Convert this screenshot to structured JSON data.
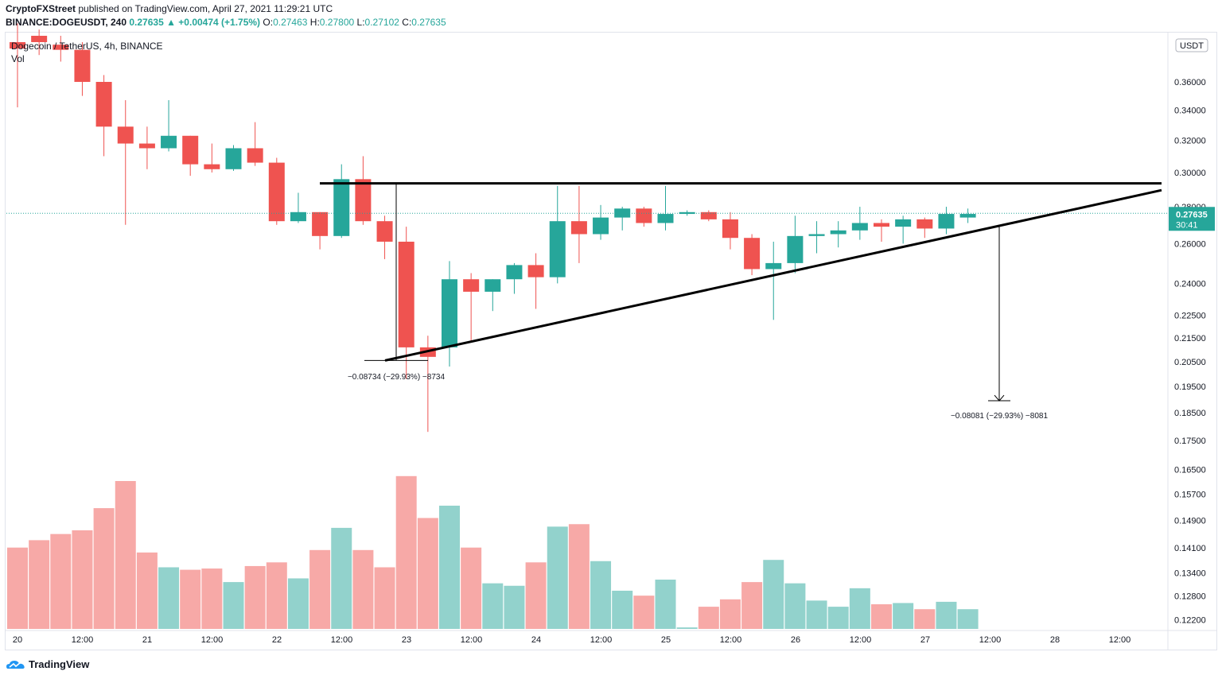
{
  "header": {
    "publisher": "CryptoFXStreet",
    "published_text": "published on TradingView.com, April 27, 2021 11:29:21 UTC",
    "symbol": "BINANCE:DOGEUSDT, 240",
    "change": "0.27635 ▲ +0.00474 (+1.75%)",
    "o_label": "O:",
    "o_value": "0.27463",
    "h_label": "H:",
    "h_value": "0.27800",
    "l_label": "L:",
    "l_value": "0.27102",
    "c_label": "C:",
    "c_value": "0.27635"
  },
  "legend": {
    "title": "Dogecoin / TetherUS, 4h, BINANCE",
    "vol": "Vol"
  },
  "price_axis": {
    "currency": "USDT",
    "current_price": "0.27635",
    "countdown": "30:41"
  },
  "annotations": {
    "measure_left": "−0.08734 (−29.93%) −8734",
    "measure_right": "−0.08081 (−29.93%) −8081"
  },
  "footer": {
    "brand": "TradingView"
  },
  "colors": {
    "up": "#26a69a",
    "down": "#ef5350",
    "vol_up": "#92d2cc",
    "vol_down": "#f7a9a7",
    "price_line": "#26a69a"
  },
  "chart_data": {
    "type": "candlestick",
    "title": "Dogecoin / TetherUS, 4h, BINANCE",
    "y_scale": "log",
    "ylim": [
      0.1205,
      0.3875
    ],
    "y_ticks": [
      "0.36000",
      "0.34000",
      "0.32000",
      "0.30000",
      "0.28000",
      "0.26000",
      "0.24000",
      "0.22500",
      "0.21500",
      "0.20500",
      "0.19500",
      "0.18500",
      "0.17500",
      "0.16500",
      "0.15700",
      "0.14900",
      "0.14100",
      "0.13400",
      "0.12800",
      "0.12200"
    ],
    "x_ticks": [
      "20",
      "12:00",
      "21",
      "12:00",
      "22",
      "12:00",
      "23",
      "12:00",
      "24",
      "12:00",
      "25",
      "12:00",
      "26",
      "12:00",
      "27",
      "12:00",
      "28",
      "12:00"
    ],
    "candles": [
      {
        "o": 0.39,
        "h": 0.405,
        "l": 0.342,
        "c": 0.385,
        "v": 33
      },
      {
        "o": 0.395,
        "h": 0.4,
        "l": 0.38,
        "c": 0.39,
        "v": 36
      },
      {
        "o": 0.388,
        "h": 0.395,
        "l": 0.375,
        "c": 0.384,
        "v": 38.5
      },
      {
        "o": 0.384,
        "h": 0.39,
        "l": 0.35,
        "c": 0.36,
        "v": 40
      },
      {
        "o": 0.36,
        "h": 0.365,
        "l": 0.31,
        "c": 0.329,
        "v": 49
      },
      {
        "o": 0.329,
        "h": 0.347,
        "l": 0.27,
        "c": 0.318,
        "v": 60
      },
      {
        "o": 0.318,
        "h": 0.329,
        "l": 0.302,
        "c": 0.315,
        "v": 31
      },
      {
        "o": 0.315,
        "h": 0.347,
        "l": 0.313,
        "c": 0.323,
        "v": 25
      },
      {
        "o": 0.323,
        "h": 0.323,
        "l": 0.298,
        "c": 0.305,
        "v": 24
      },
      {
        "o": 0.305,
        "h": 0.318,
        "l": 0.3,
        "c": 0.302,
        "v": 24.5
      },
      {
        "o": 0.302,
        "h": 0.317,
        "l": 0.301,
        "c": 0.315,
        "v": 19
      },
      {
        "o": 0.315,
        "h": 0.332,
        "l": 0.304,
        "c": 0.306,
        "v": 25.5
      },
      {
        "o": 0.306,
        "h": 0.309,
        "l": 0.27,
        "c": 0.272,
        "v": 27
      },
      {
        "o": 0.272,
        "h": 0.288,
        "l": 0.271,
        "c": 0.277,
        "v": 20.5
      },
      {
        "o": 0.277,
        "h": 0.277,
        "l": 0.257,
        "c": 0.264,
        "v": 32
      },
      {
        "o": 0.264,
        "h": 0.305,
        "l": 0.263,
        "c": 0.296,
        "v": 41
      },
      {
        "o": 0.296,
        "h": 0.31,
        "l": 0.27,
        "c": 0.272,
        "v": 32
      },
      {
        "o": 0.272,
        "h": 0.275,
        "l": 0.252,
        "c": 0.261,
        "v": 25
      },
      {
        "o": 0.261,
        "h": 0.269,
        "l": 0.198,
        "c": 0.211,
        "v": 62
      },
      {
        "o": 0.211,
        "h": 0.216,
        "l": 0.178,
        "c": 0.207,
        "v": 45
      },
      {
        "o": 0.211,
        "h": 0.251,
        "l": 0.203,
        "c": 0.242,
        "v": 50
      },
      {
        "o": 0.242,
        "h": 0.245,
        "l": 0.213,
        "c": 0.236,
        "v": 33
      },
      {
        "o": 0.236,
        "h": 0.242,
        "l": 0.227,
        "c": 0.242,
        "v": 18.5
      },
      {
        "o": 0.242,
        "h": 0.25,
        "l": 0.235,
        "c": 0.249,
        "v": 17.5
      },
      {
        "o": 0.249,
        "h": 0.255,
        "l": 0.228,
        "c": 0.243,
        "v": 27
      },
      {
        "o": 0.243,
        "h": 0.292,
        "l": 0.24,
        "c": 0.272,
        "v": 41.5
      },
      {
        "o": 0.272,
        "h": 0.292,
        "l": 0.25,
        "c": 0.265,
        "v": 42.5
      },
      {
        "o": 0.265,
        "h": 0.281,
        "l": 0.262,
        "c": 0.274,
        "v": 27.5
      },
      {
        "o": 0.274,
        "h": 0.28,
        "l": 0.267,
        "c": 0.279,
        "v": 15.5
      },
      {
        "o": 0.279,
        "h": 0.28,
        "l": 0.269,
        "c": 0.271,
        "v": 13.5
      },
      {
        "o": 0.271,
        "h": 0.292,
        "l": 0.267,
        "c": 0.276,
        "v": 20
      },
      {
        "o": 0.276,
        "h": 0.278,
        "l": 0.275,
        "c": 0.277,
        "v": 0.6
      },
      {
        "o": 0.277,
        "h": 0.278,
        "l": 0.272,
        "c": 0.273,
        "v": 9
      },
      {
        "o": 0.273,
        "h": 0.277,
        "l": 0.257,
        "c": 0.263,
        "v": 12
      },
      {
        "o": 0.263,
        "h": 0.265,
        "l": 0.244,
        "c": 0.247,
        "v": 19
      },
      {
        "o": 0.247,
        "h": 0.261,
        "l": 0.223,
        "c": 0.25,
        "v": 28
      },
      {
        "o": 0.25,
        "h": 0.275,
        "l": 0.245,
        "c": 0.264,
        "v": 18.5
      },
      {
        "o": 0.264,
        "h": 0.272,
        "l": 0.255,
        "c": 0.265,
        "v": 11.5
      },
      {
        "o": 0.265,
        "h": 0.272,
        "l": 0.258,
        "c": 0.267,
        "v": 9
      },
      {
        "o": 0.267,
        "h": 0.28,
        "l": 0.262,
        "c": 0.271,
        "v": 16.5
      },
      {
        "o": 0.271,
        "h": 0.273,
        "l": 0.261,
        "c": 0.269,
        "v": 10
      },
      {
        "o": 0.269,
        "h": 0.275,
        "l": 0.26,
        "c": 0.273,
        "v": 10.5
      },
      {
        "o": 0.273,
        "h": 0.274,
        "l": 0.263,
        "c": 0.268,
        "v": 8
      },
      {
        "o": 0.268,
        "h": 0.28,
        "l": 0.265,
        "c": 0.276,
        "v": 11
      },
      {
        "o": 0.274,
        "h": 0.279,
        "l": 0.271,
        "c": 0.276,
        "v": 8
      }
    ],
    "lines": {
      "resistance": {
        "label": "horizontal resistance",
        "price": 0.2935
      },
      "support": {
        "label": "ascending trendline",
        "from_price": 0.2055,
        "to_price": 0.2895
      }
    },
    "measure_left": {
      "from_price": 0.2935,
      "to_price": 0.2055
    },
    "measure_right": {
      "from_price": 0.27,
      "to_price": 0.1895
    }
  }
}
